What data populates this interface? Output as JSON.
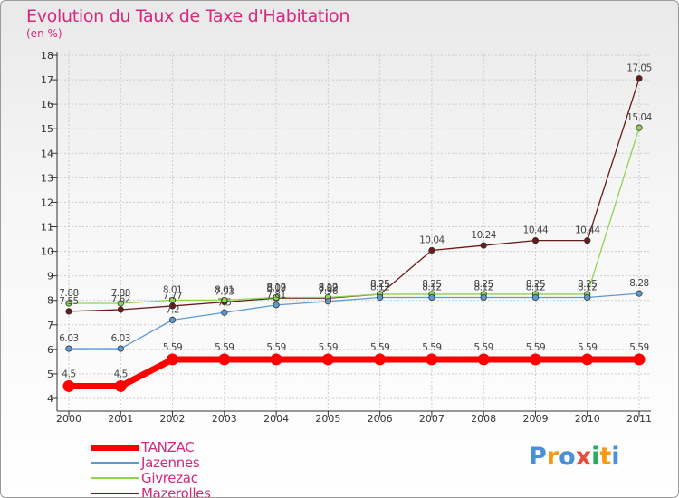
{
  "chart_data": {
    "type": "line",
    "title": "Evolution du Taux de Taxe d'Habitation",
    "ylabel": "(en %)",
    "xlabel": "",
    "ylim": [
      4,
      18
    ],
    "yticks": [
      "4",
      "5",
      "6",
      "7",
      "8",
      "9",
      "10",
      "11",
      "12",
      "13",
      "14",
      "15",
      "16",
      "17",
      "18"
    ],
    "x": [
      "2000",
      "2001",
      "2002",
      "2003",
      "2004",
      "2005",
      "2006",
      "2007",
      "2008",
      "2009",
      "2010",
      "2011"
    ],
    "series": [
      {
        "name": "TANZAC",
        "color": "#ff0000",
        "values": [
          4.5,
          4.5,
          5.59,
          5.59,
          5.59,
          5.59,
          5.59,
          5.59,
          5.59,
          5.59,
          5.59,
          5.59
        ],
        "labels": [
          "4.5",
          "4.5",
          "5.59",
          "5.59",
          "5.59",
          "5.59",
          "5.59",
          "5.59",
          "5.59",
          "5.59",
          "5.59",
          "5.59"
        ]
      },
      {
        "name": "Jazennes",
        "color": "#5b9bd5",
        "values": [
          6.03,
          6.03,
          7.2,
          7.5,
          7.81,
          7.96,
          8.12,
          8.12,
          8.12,
          8.12,
          8.12,
          8.28
        ],
        "labels": [
          "6.03",
          "6.03",
          "7.2",
          "7.5",
          "7.81",
          "7.96",
          "8.12",
          "8.12",
          "8.12",
          "8.12",
          "8.12",
          "8.28"
        ]
      },
      {
        "name": "Givrezac",
        "color": "#8cd54f",
        "values": [
          7.88,
          7.88,
          8.01,
          8.01,
          8.12,
          8.12,
          8.25,
          8.25,
          8.25,
          8.25,
          8.25,
          15.04
        ],
        "labels": [
          "7.88",
          "7.88",
          "8.01",
          "8.01",
          "8.12",
          "8.12",
          "8.25",
          "8.25",
          "8.25",
          "8.25",
          "8.25",
          "15.04"
        ]
      },
      {
        "name": "Mazerolles",
        "color": "#6b1a1a",
        "values": [
          7.55,
          7.62,
          7.77,
          7.93,
          8.09,
          8.09,
          8.25,
          10.04,
          10.24,
          10.44,
          10.44,
          17.05
        ],
        "labels": [
          "7.55",
          "7.62",
          "7.77",
          "7.93",
          "8.09",
          "8.09",
          "8.25",
          "10.04",
          "10.24",
          "10.44",
          "10.44",
          "17.05"
        ]
      }
    ]
  },
  "legend": {
    "items": [
      "TANZAC",
      "Jazennes",
      "Givrezac",
      "Mazerolles"
    ]
  },
  "logo": {
    "letters": [
      "P",
      "r",
      "o",
      "x",
      "i",
      "t",
      "i"
    ],
    "colors": [
      "#4a90d9",
      "#f39c12",
      "#4a90d9",
      "#e74c3c",
      "#27ae60",
      "#f39c12",
      "#4a90d9"
    ]
  }
}
